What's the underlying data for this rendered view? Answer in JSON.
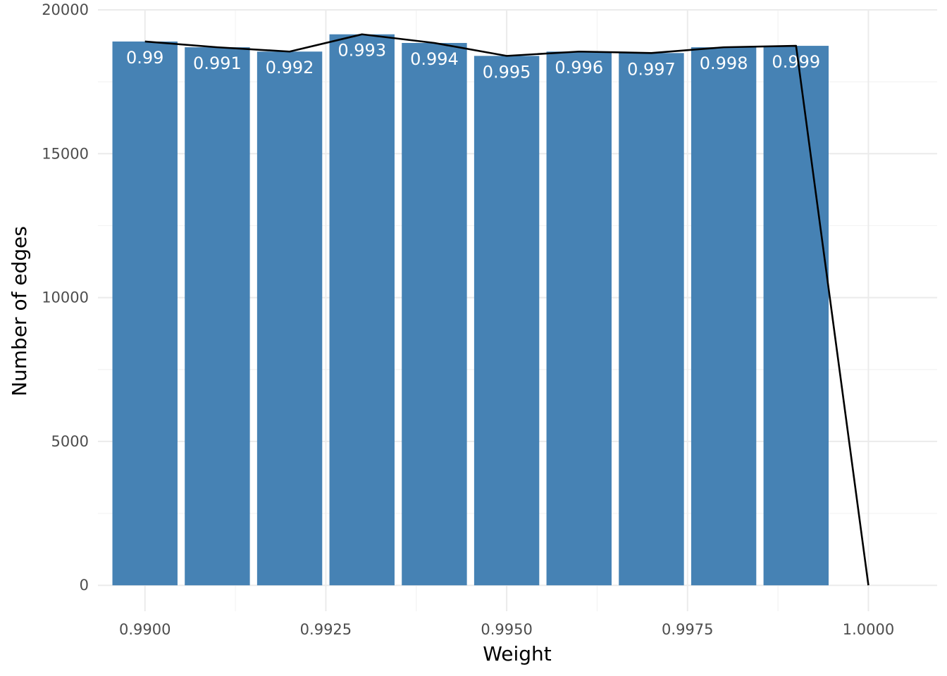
{
  "chart_data": {
    "type": "bar",
    "title": "",
    "xlabel": "Weight",
    "ylabel": "Number of edges",
    "xlim": [
      0.98935,
      1.00095
    ],
    "ylim": [
      -900,
      20000
    ],
    "x_ticks": [
      0.99,
      0.9925,
      0.995,
      0.9975,
      1.0
    ],
    "x_tick_labels": [
      "0.9900",
      "0.9925",
      "0.9950",
      "0.9975",
      "1.0000"
    ],
    "x_minor_ticks": [
      0.99125,
      0.99375,
      0.99625,
      0.99875
    ],
    "y_ticks": [
      0,
      5000,
      10000,
      15000,
      20000
    ],
    "y_tick_labels": [
      "0",
      "5000",
      "10000",
      "15000",
      "20000"
    ],
    "y_minor_ticks": [
      2500,
      7500,
      12500,
      17500
    ],
    "grid": true,
    "bar_color": "#4682b4",
    "line_color": "#000000",
    "bar_width": 0.0009,
    "bars": [
      {
        "x": 0.99,
        "value": 18900,
        "label": "0.99"
      },
      {
        "x": 0.991,
        "value": 18700,
        "label": "0.991"
      },
      {
        "x": 0.992,
        "value": 18550,
        "label": "0.992"
      },
      {
        "x": 0.993,
        "value": 19150,
        "label": "0.993"
      },
      {
        "x": 0.994,
        "value": 18850,
        "label": "0.994"
      },
      {
        "x": 0.995,
        "value": 18400,
        "label": "0.995"
      },
      {
        "x": 0.996,
        "value": 18550,
        "label": "0.996"
      },
      {
        "x": 0.997,
        "value": 18500,
        "label": "0.997"
      },
      {
        "x": 0.998,
        "value": 18700,
        "label": "0.998"
      },
      {
        "x": 0.999,
        "value": 18750,
        "label": "0.999"
      }
    ],
    "line": {
      "x": [
        0.99,
        0.991,
        0.992,
        0.993,
        0.994,
        0.995,
        0.996,
        0.997,
        0.998,
        0.999,
        1.0
      ],
      "y": [
        18900,
        18700,
        18550,
        19150,
        18850,
        18400,
        18550,
        18500,
        18700,
        18750,
        0
      ]
    }
  }
}
